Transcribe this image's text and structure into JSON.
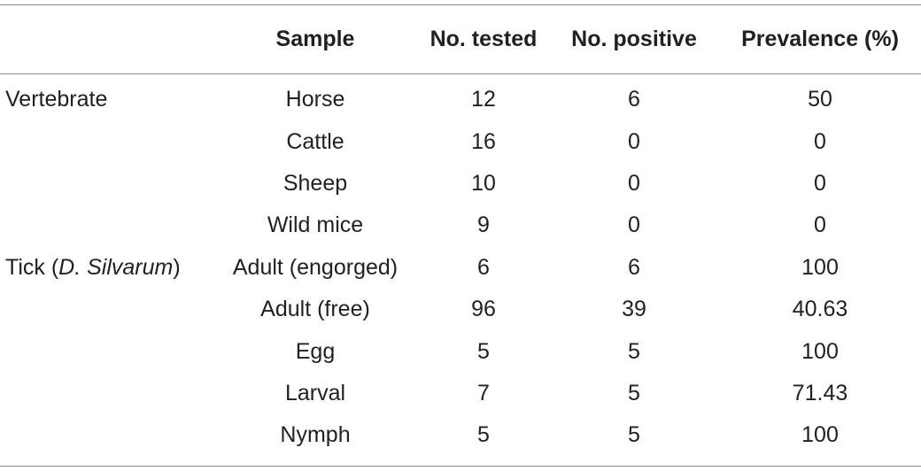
{
  "table": {
    "headers": [
      "",
      "Sample",
      "No. tested",
      "No. positive",
      "Prevalence (%)"
    ],
    "rows": [
      {
        "group": "Vertebrate",
        "sample": "Horse",
        "tested": "12",
        "positive": "6",
        "prevalence": "50"
      },
      {
        "group": "",
        "sample": "Cattle",
        "tested": "16",
        "positive": "0",
        "prevalence": "0"
      },
      {
        "group": "",
        "sample": "Sheep",
        "tested": "10",
        "positive": "0",
        "prevalence": "0"
      },
      {
        "group": "",
        "sample": "Wild mice",
        "tested": "9",
        "positive": "0",
        "prevalence": "0"
      },
      {
        "group_prefix": "Tick (",
        "group_italic": "D. Silvarum",
        "group_suffix": ")",
        "sample": "Adult (engorged)",
        "tested": "6",
        "positive": "6",
        "prevalence": "100"
      },
      {
        "group": "",
        "sample": "Adult (free)",
        "tested": "96",
        "positive": "39",
        "prevalence": "40.63"
      },
      {
        "group": "",
        "sample": "Egg",
        "tested": "5",
        "positive": "5",
        "prevalence": "100"
      },
      {
        "group": "",
        "sample": "Larval",
        "tested": "7",
        "positive": "5",
        "prevalence": "71.43"
      },
      {
        "group": "",
        "sample": "Nymph",
        "tested": "5",
        "positive": "5",
        "prevalence": "100"
      }
    ]
  }
}
